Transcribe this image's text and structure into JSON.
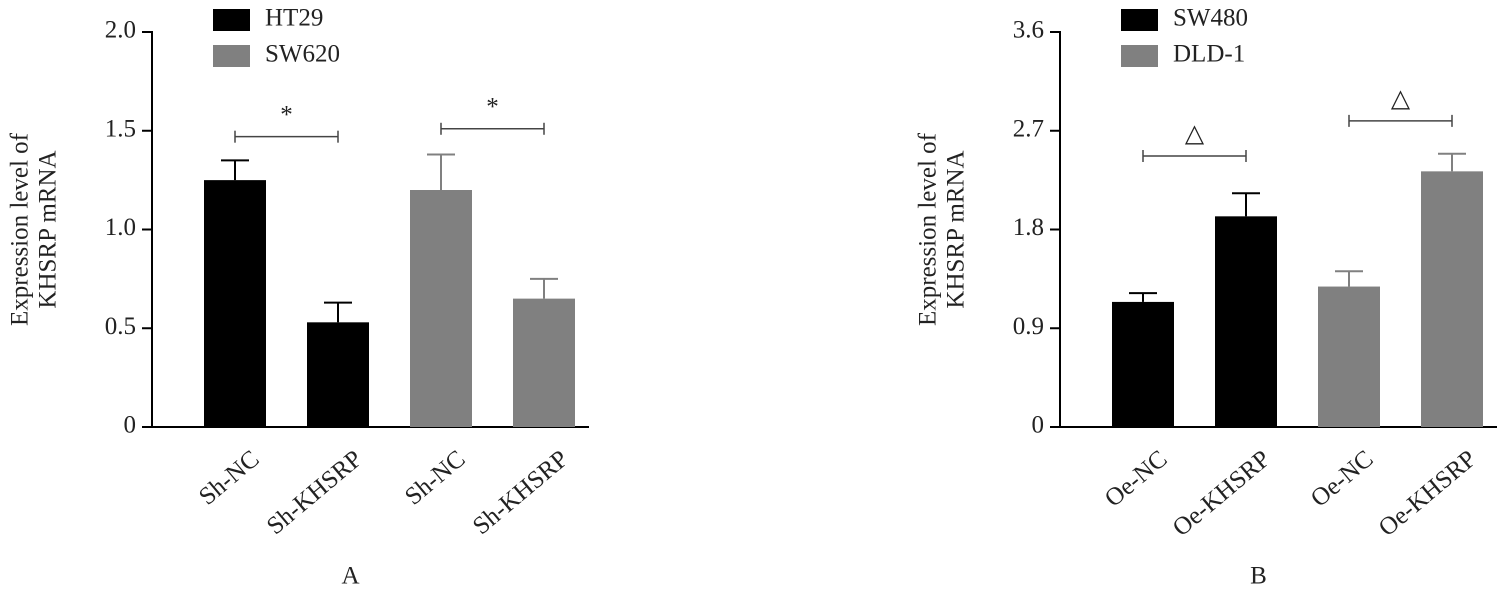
{
  "chart_data": [
    {
      "type": "bar",
      "panel_label": "A",
      "ylabel": [
        "Expression level of",
        "KHSRP mRNA"
      ],
      "categories": [
        "Sh-NC",
        "Sh-KHSRP",
        "Sh-NC",
        "Sh-KHSRP"
      ],
      "series": [
        {
          "name": "HT29",
          "color": "#000000",
          "values": [
            1.25,
            0.53,
            null,
            null
          ],
          "errors": [
            0.1,
            0.1,
            null,
            null
          ]
        },
        {
          "name": "SW620",
          "color": "#808080",
          "values": [
            null,
            null,
            1.2,
            0.65
          ],
          "errors": [
            null,
            null,
            0.18,
            0.1
          ]
        }
      ],
      "ylim": [
        0,
        2
      ],
      "yticks": [
        0,
        0.5,
        {
          "value": 1,
          "label": "1.0"
        },
        1.5,
        {
          "value": 2,
          "label": "2.0"
        }
      ],
      "annotations": [
        {
          "text": "*",
          "from": 0,
          "to": 1,
          "y": 1.47
        },
        {
          "text": "*",
          "from": 2,
          "to": 3,
          "y": 1.51
        }
      ]
    },
    {
      "type": "bar",
      "panel_label": "B",
      "ylabel": [
        "Expression level of",
        "KHSRP mRNA"
      ],
      "categories": [
        "Oe-NC",
        "Oe-KHSRP",
        "Oe-NC",
        "Oe-KHSRP"
      ],
      "series": [
        {
          "name": "SW480",
          "color": "#000000",
          "values": [
            1.14,
            1.92,
            null,
            null
          ],
          "errors": [
            0.08,
            0.21,
            null,
            null
          ]
        },
        {
          "name": "DLD-1",
          "color": "#808080",
          "values": [
            null,
            null,
            1.28,
            2.33
          ],
          "errors": [
            null,
            null,
            0.14,
            0.16
          ]
        }
      ],
      "ylim": [
        0,
        3.6
      ],
      "yticks": [
        0,
        0.9,
        1.8,
        2.7,
        3.6
      ],
      "annotations": [
        {
          "text": "△",
          "from": 0,
          "to": 1,
          "y": 2.47
        },
        {
          "text": "△",
          "from": 2,
          "to": 3,
          "y": 2.79
        }
      ]
    }
  ]
}
